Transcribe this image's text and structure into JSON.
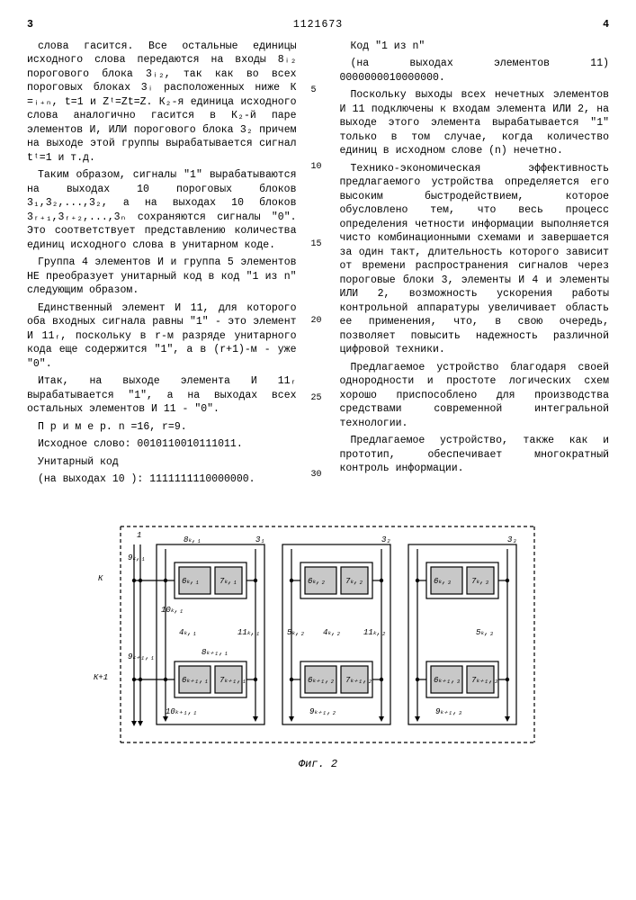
{
  "header": {
    "page_left": "3",
    "doc_number": "1121673",
    "page_right": "4"
  },
  "left_col": {
    "p1": "слова гасится. Все остальные единицы исходного слова передаются на входы 8ᵢ₂ порогового блока 3ᵢ₂, так как во всех пороговых блоках 3ᵢ расположенных ниже К =ᵢ₊ₙ, t=1 и Zᵗ=Zt=Z. К₂-я единица исходного слова аналогично гасится в К₂-й паре элементов И, ИЛИ порогового блока 3₂ причем на выходе этой группы вырабатывается сигнал tᵗ=1 и т.д.",
    "p2": "Таким образом, сигналы \"1\" вырабатываются на выходах 10 пороговых блоков 3₁,3₂,...,3₂, а на выходах 10 блоков 3ᵣ₊₁,3ᵣ₊₂,...,3ₙ сохраняются сигналы \"0\". Это соответствует представлению количества единиц исходного слова в унитарном коде.",
    "p3": "Группа 4 элементов И и группа 5 элементов НЕ преобразует унитарный код в код \"1 из n\" следующим образом.",
    "p4": "Единственный элемент И 11, для которого оба входных сигнала равны \"1\" - это элемент И 11ᵣ, поскольку в r-м разряде унитарного кода еще содержится \"1\", а в (r+1)-м - уже \"0\".",
    "p5": "Итак, на выходе элемента И 11ᵣ вырабатывается \"1\", а на выходах всех остальных элементов И 11 - \"0\".",
    "p6": "П р и м е р. n =16, r=9.",
    "p7": "Исходное слово: 0010110010111011.",
    "p8": "Унитарный код",
    "p9": "(на выходах 10 ): 1111111110000000."
  },
  "line_nums_left": [
    "5",
    "10",
    "15",
    "20",
    "25",
    "30"
  ],
  "right_col": {
    "p1": "Код \"1 из n\"",
    "p2": "(на выходах элементов 11)         0000000010000000.",
    "p3": "Поскольку выходы всех нечетных элементов И 11 подключены к входам элемента ИЛИ 2, на выходе этого элемента вырабатывается \"1\" только в том случае, когда количество единиц в исходном слове (n) нечетно.",
    "p4": "Технико-экономическая эффективность предлагаемого устройства определяется его высоким быстродействием, которое обусловлено тем, что весь процесс определения четности информации выполняется чисто комбинационными схемами и завершается за один такт, длительность которого зависит от времени распространения сигналов через пороговые блоки 3, элементы И 4 и элементы ИЛИ 2, возможность ускорения работы контрольной аппаратуры увеличивает область ее применения, что, в свою очередь, позволяет повысить надежность различной цифровой техники.",
    "p5": "Предлагаемое устройство благодаря своей однородности и простоте логических схем хорошо приспособлено для производства средствами современной интегральной технологии.",
    "p6": "Предлагаемое устройство, также как и прототип, обеспечивает многократный контроль информации."
  },
  "diagram": {
    "fig_label": "Фиг. 2",
    "row_labels": [
      "К",
      "К+1"
    ],
    "top_labels": [
      "1",
      "8ₖ,₁",
      "3₁",
      "3₂",
      "3₃"
    ],
    "block_labels": {
      "r1": [
        [
          "6ₖ,₁",
          "7ₖ,₁"
        ],
        [
          "6ₖ,₂",
          "7ₖ,₂"
        ],
        [
          "6ₖ,₃",
          "7ₖ,₃"
        ]
      ],
      "r2": [
        [
          "6ₖ₊₁,₁",
          "7ₖ₊₁,₁"
        ],
        [
          "6ₖ₊₁,₂",
          "7ₖ₊₁,₂"
        ],
        [
          "6ₖ₊₁,₃",
          "7ₖ₊₁,₃"
        ]
      ]
    },
    "mid_labels": [
      "9ₖ,₁",
      "4ₖ,₁",
      "11ₖ,₁",
      "5ₖ,₂",
      "4ₖ,₂",
      "11ₖ,₂",
      "5ₖ,₃"
    ],
    "out_labels": [
      "10ₖ,₁",
      "8ₖ₊₁,₁",
      "9ₖ₊₁,₁",
      "9ₖ₊₁,₂",
      "9ₖ₊₁,₃"
    ],
    "bottom_out": "10ₖ₊₁,₁",
    "colors": {
      "stroke": "#000000",
      "fill_block": "#c8c8c8",
      "bg": "#ffffff"
    },
    "stroke_width": 1.2,
    "font_size": 9
  }
}
